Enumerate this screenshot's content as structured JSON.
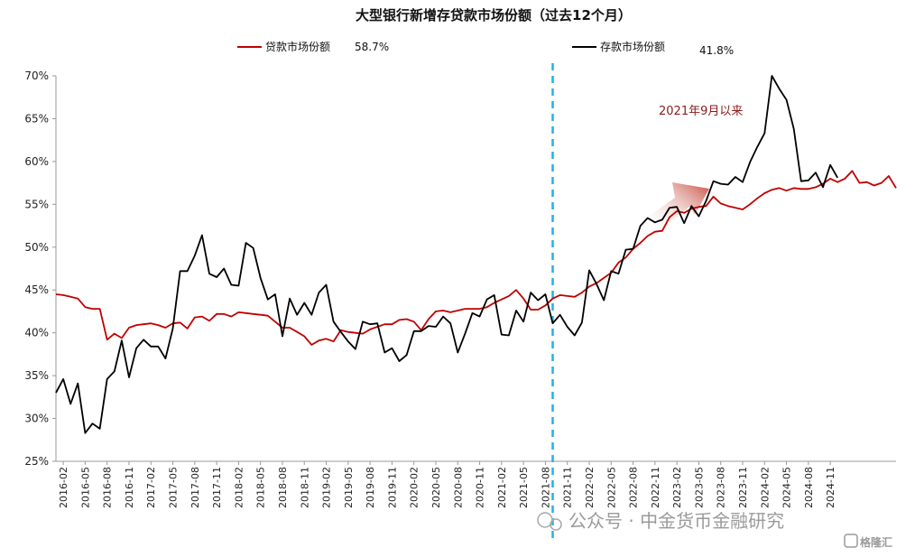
{
  "chart_data": {
    "type": "line",
    "title": "大型银行新增存贷款市场份额（过去12个月）",
    "legend": {
      "placement": "top"
    },
    "series": [
      {
        "name": "贷款市场份额",
        "legend_value": "58.7%",
        "color": "#c00000",
        "values": [
          44.5,
          44.4,
          44.2,
          44.0,
          43.0,
          42.8,
          42.8,
          39.2,
          39.9,
          39.4,
          40.6,
          40.9,
          41.0,
          41.1,
          40.9,
          40.6,
          41.1,
          41.2,
          40.5,
          41.8,
          41.9,
          41.4,
          42.2,
          42.2,
          41.9,
          42.4,
          42.3,
          42.2,
          42.1,
          42.0,
          41.3,
          40.6,
          40.6,
          40.1,
          39.6,
          38.6,
          39.1,
          39.3,
          39.0,
          40.3,
          40.1,
          40.0,
          39.9,
          40.4,
          40.7,
          41.0,
          41.0,
          41.5,
          41.6,
          41.3,
          40.3,
          41.6,
          42.5,
          42.6,
          42.4,
          42.6,
          42.8,
          42.8,
          42.8,
          43.0,
          43.5,
          43.9,
          44.3,
          45.0,
          44.0,
          42.7,
          42.7,
          43.2,
          44.0,
          44.4,
          44.3,
          44.2,
          44.7,
          45.4,
          45.8,
          46.4,
          47.0,
          48.2,
          48.8,
          49.8,
          50.5,
          51.3,
          51.8,
          51.9,
          53.5,
          54.2,
          54.0,
          54.5,
          54.7,
          54.8,
          55.9,
          55.1,
          54.8,
          54.6,
          54.4,
          55.0,
          55.7,
          56.3,
          56.7,
          56.9,
          56.6,
          56.9,
          56.8,
          56.8,
          57.0,
          57.4,
          58.0,
          57.6,
          58.0,
          58.9,
          57.5,
          57.6,
          57.2,
          57.5,
          58.3,
          56.9
        ]
      },
      {
        "name": "存款市场份额",
        "legend_value": "41.8%",
        "color": "#000000",
        "values": [
          33.0,
          34.6,
          31.7,
          34.1,
          28.3,
          29.4,
          28.8,
          34.6,
          35.5,
          39.1,
          34.8,
          38.2,
          39.2,
          38.4,
          38.4,
          37.0,
          40.5,
          47.2,
          47.2,
          49.0,
          51.4,
          46.9,
          46.5,
          47.5,
          45.6,
          45.5,
          50.5,
          49.9,
          46.4,
          43.9,
          44.5,
          39.6,
          44.0,
          42.1,
          43.5,
          42.1,
          44.7,
          45.6,
          41.3,
          40.1,
          39.0,
          38.1,
          41.3,
          41.0,
          41.1,
          37.7,
          38.2,
          36.7,
          37.4,
          40.2,
          40.2,
          40.8,
          40.7,
          41.9,
          41.1,
          37.7,
          39.9,
          42.3,
          41.9,
          43.9,
          44.4,
          39.8,
          39.7,
          42.6,
          41.3,
          44.7,
          43.8,
          44.5,
          41.1,
          42.1,
          40.7,
          39.7,
          41.2,
          47.3,
          45.7,
          43.8,
          47.2,
          46.9,
          49.7,
          49.8,
          52.5,
          53.4,
          52.9,
          53.2,
          54.6,
          54.7,
          52.8,
          54.8,
          53.6,
          55.4,
          57.7,
          57.4,
          57.3,
          58.2,
          57.6,
          59.9,
          61.7,
          63.3,
          70.0,
          68.5,
          67.2,
          63.8,
          57.7,
          57.8,
          58.7,
          57.0,
          59.6,
          58.1
        ]
      }
    ],
    "x_start": "2016-01",
    "x_tick_labels": [
      "2016-02",
      "2016-05",
      "2016-08",
      "2016-11",
      "2017-02",
      "2017-05",
      "2017-08",
      "2017-11",
      "2018-02",
      "2018-05",
      "2018-08",
      "2018-11",
      "2019-02",
      "2019-05",
      "2019-08",
      "2019-11",
      "2020-02",
      "2020-05",
      "2020-08",
      "2020-11",
      "2021-02",
      "2021-05",
      "2021-08",
      "2021-11",
      "2022-02",
      "2022-05",
      "2022-08",
      "2022-11",
      "2023-02",
      "2023-05",
      "2023-08",
      "2023-11",
      "2024-02",
      "2024-05",
      "2024-08",
      "2024-11"
    ],
    "y_tick_labels": [
      "25%",
      "30%",
      "35%",
      "40%",
      "45%",
      "50%",
      "55%",
      "60%",
      "65%",
      "70%"
    ],
    "ylim": [
      25,
      70
    ],
    "xlabel": "",
    "ylabel": "",
    "grid": false,
    "vline": {
      "at": "2021-09",
      "color": "#1fb3e6"
    },
    "annotation": {
      "text": "2021年9月以来",
      "color": "#8b1a1a"
    }
  },
  "watermark": {
    "text": "公众号 · 中金货币金融研究",
    "badge": "格隆汇"
  }
}
